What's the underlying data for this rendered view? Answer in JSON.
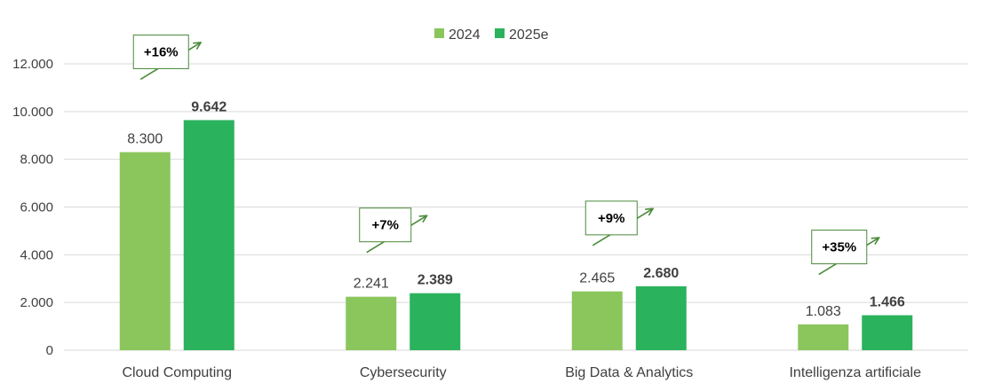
{
  "chart_data": {
    "type": "bar",
    "title": "",
    "xlabel": "",
    "ylabel": "",
    "ylim": [
      0,
      12000
    ],
    "yticks": [
      0,
      2000,
      4000,
      6000,
      8000,
      10000,
      12000
    ],
    "ytick_labels": [
      "0",
      "2.000",
      "4.000",
      "6.000",
      "8.000",
      "10.000",
      "12.000"
    ],
    "grid": true,
    "legend_position": "top-center",
    "categories": [
      "Cloud Computing",
      "Cybersecurity",
      "Big Data & Analytics",
      "Intelligenza artificiale"
    ],
    "series": [
      {
        "name": "2024",
        "color": "#8AC65C",
        "values": [
          8300,
          2241,
          2465,
          1083
        ],
        "labels": [
          "8.300",
          "2.241",
          "2.465",
          "1.083"
        ],
        "label_bold": false
      },
      {
        "name": "2025e",
        "color": "#2BB25D",
        "values": [
          9642,
          2389,
          2680,
          1466
        ],
        "labels": [
          "9.642",
          "2.389",
          "2.680",
          "1.466"
        ],
        "label_bold": true
      }
    ],
    "annotations": [
      "+16%",
      "+7%",
      "+9%",
      "+35%"
    ],
    "arrow_color": "#4A8A3A",
    "grid_color": "#D9D9D9"
  }
}
